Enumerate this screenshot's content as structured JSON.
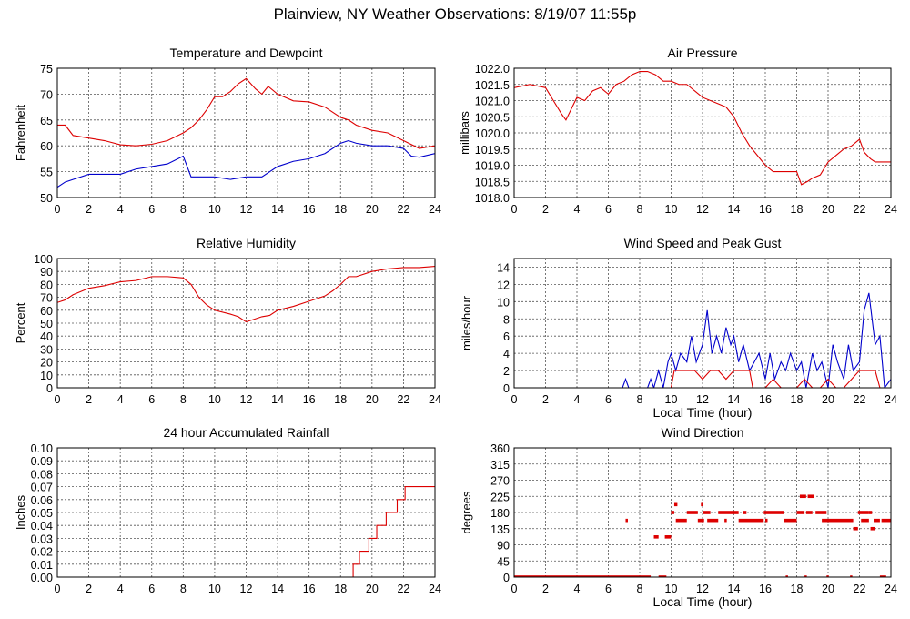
{
  "page": {
    "title": "Plainview, NY Weather Observations: 8/19/07 11:55p"
  },
  "colors": {
    "red": "#dd0000",
    "blue": "#0000cc",
    "grid": "#555555"
  },
  "chart_data": [
    {
      "id": "temp",
      "type": "line",
      "title": "Temperature and Dewpoint",
      "xlabel": "",
      "ylabel": "Fahrenheit",
      "xlim": [
        0,
        24
      ],
      "ylim": [
        50,
        75
      ],
      "yticks": [
        50,
        55,
        60,
        65,
        70,
        75
      ],
      "ytick_labels": [
        "50",
        "55",
        "60",
        "65",
        "70",
        "75"
      ],
      "xticks": [
        0,
        2,
        4,
        6,
        8,
        10,
        12,
        14,
        16,
        18,
        20,
        22,
        24
      ],
      "grid": true,
      "series": [
        {
          "color": "#dd0000",
          "x": [
            0,
            0.5,
            1,
            2,
            3,
            4,
            5,
            6,
            7,
            8,
            8.5,
            9,
            9.5,
            10,
            10.5,
            11,
            11.5,
            12,
            12.3,
            12.6,
            13,
            13.4,
            14,
            15,
            16,
            17,
            18,
            18.5,
            19,
            20,
            21,
            22,
            23,
            24
          ],
          "y": [
            64,
            64,
            62,
            61.5,
            61,
            60.2,
            60,
            60.3,
            61,
            62.5,
            63.5,
            65,
            67,
            69.5,
            69.5,
            70.5,
            72,
            73,
            72,
            71,
            70,
            71.5,
            70,
            68.7,
            68.5,
            67.5,
            65.5,
            65,
            64,
            63,
            62.5,
            61,
            59.5,
            60
          ]
        },
        {
          "color": "#0000cc",
          "x": [
            0,
            0.5,
            1,
            2,
            3,
            4,
            5,
            6,
            7,
            8,
            8.5,
            9,
            10,
            11,
            12,
            13,
            14,
            15,
            16,
            17,
            18,
            18.5,
            19,
            20,
            21,
            22,
            22.5,
            23,
            24
          ],
          "y": [
            52,
            53,
            53.5,
            54.5,
            54.5,
            54.5,
            55.5,
            56,
            56.5,
            58,
            54,
            54,
            54,
            53.5,
            54,
            54,
            56,
            57,
            57.5,
            58.5,
            60.5,
            61,
            60.5,
            60,
            60,
            59.5,
            58,
            57.8,
            58.5
          ]
        }
      ]
    },
    {
      "id": "pressure",
      "type": "line",
      "title": "Air Pressure",
      "xlabel": "",
      "ylabel": "millibars",
      "xlim": [
        0,
        24
      ],
      "ylim": [
        1018.0,
        1022.0
      ],
      "yticks": [
        1018.0,
        1018.5,
        1019.0,
        1019.5,
        1020.0,
        1020.5,
        1021.0,
        1021.5,
        1022.0
      ],
      "ytick_labels": [
        "1018.0",
        "1018.5",
        "1019.0",
        "1019.5",
        "1020.0",
        "1020.5",
        "1021.0",
        "1021.5",
        "1022.0"
      ],
      "xticks": [
        0,
        2,
        4,
        6,
        8,
        10,
        12,
        14,
        16,
        18,
        20,
        22,
        24
      ],
      "grid": true,
      "series": [
        {
          "color": "#dd0000",
          "x": [
            0,
            1,
            2,
            2.5,
            3,
            3.3,
            3.7,
            4,
            4.5,
            5,
            5.5,
            6,
            6.5,
            7,
            7.5,
            8,
            8.5,
            9,
            9.5,
            10,
            10.5,
            11,
            11.5,
            12,
            13,
            13.5,
            14,
            14.5,
            15,
            15.5,
            16,
            16.5,
            17,
            18,
            18.3,
            18.7,
            19,
            19.5,
            20,
            20.5,
            21,
            21.5,
            22,
            22.3,
            22.7,
            23,
            24
          ],
          "y": [
            1021.4,
            1021.5,
            1021.4,
            1021.0,
            1020.6,
            1020.4,
            1020.8,
            1021.1,
            1021.0,
            1021.3,
            1021.4,
            1021.2,
            1021.5,
            1021.6,
            1021.8,
            1021.9,
            1021.9,
            1021.8,
            1021.6,
            1021.6,
            1021.5,
            1021.5,
            1021.3,
            1021.1,
            1020.9,
            1020.8,
            1020.5,
            1020.0,
            1019.6,
            1019.3,
            1019.0,
            1018.8,
            1018.8,
            1018.8,
            1018.4,
            1018.5,
            1018.6,
            1018.7,
            1019.1,
            1019.3,
            1019.5,
            1019.6,
            1019.8,
            1019.4,
            1019.2,
            1019.1,
            1019.1
          ]
        }
      ]
    },
    {
      "id": "humidity",
      "type": "line",
      "title": "Relative Humidity",
      "xlabel": "",
      "ylabel": "Percent",
      "xlim": [
        0,
        24
      ],
      "ylim": [
        0,
        100
      ],
      "yticks": [
        0,
        10,
        20,
        30,
        40,
        50,
        60,
        70,
        80,
        90,
        100
      ],
      "ytick_labels": [
        "0",
        "10",
        "20",
        "30",
        "40",
        "50",
        "60",
        "70",
        "80",
        "90",
        "100"
      ],
      "xticks": [
        0,
        2,
        4,
        6,
        8,
        10,
        12,
        14,
        16,
        18,
        20,
        22,
        24
      ],
      "grid": true,
      "series": [
        {
          "color": "#dd0000",
          "x": [
            0,
            0.5,
            1,
            2,
            3,
            4,
            5,
            6,
            7,
            8,
            8.5,
            9,
            9.5,
            10,
            11,
            11.5,
            12,
            12.5,
            13,
            13.5,
            14,
            15,
            16,
            17,
            17.5,
            18,
            18.5,
            19,
            20,
            21,
            22,
            23,
            24
          ],
          "y": [
            66,
            68,
            72,
            77,
            79,
            82,
            83,
            86,
            86,
            85,
            80,
            70,
            64,
            60,
            57,
            55,
            51,
            53,
            55,
            56,
            60,
            63,
            67,
            71,
            75,
            80,
            86,
            86,
            90,
            92,
            93,
            93,
            94
          ]
        }
      ]
    },
    {
      "id": "wind",
      "type": "line",
      "title": "Wind Speed and Peak Gust",
      "xlabel": "Local Time (hour)",
      "ylabel": "miles/hour",
      "xlim": [
        0,
        24
      ],
      "ylim": [
        0,
        15
      ],
      "yticks": [
        0,
        2,
        4,
        6,
        8,
        10,
        12,
        14
      ],
      "ytick_labels": [
        "0",
        "2",
        "4",
        "6",
        "8",
        "10",
        "12",
        "14"
      ],
      "xticks": [
        0,
        2,
        4,
        6,
        8,
        10,
        12,
        14,
        16,
        18,
        20,
        22,
        24
      ],
      "grid": true,
      "series": [
        {
          "color": "#0000cc",
          "x": [
            0,
            6.9,
            7.1,
            7.3,
            8.5,
            8.7,
            8.9,
            9.2,
            9.5,
            9.8,
            10,
            10.3,
            10.6,
            11,
            11.3,
            11.6,
            12,
            12.3,
            12.6,
            12.9,
            13.2,
            13.5,
            13.8,
            14,
            14.3,
            14.6,
            15,
            15.3,
            15.6,
            16,
            16.3,
            16.6,
            17,
            17.3,
            17.6,
            18,
            18.3,
            18.6,
            19,
            19.3,
            19.6,
            20,
            20.3,
            20.6,
            21,
            21.3,
            21.6,
            22,
            22.3,
            22.6,
            23,
            23.3,
            23.6,
            24
          ],
          "y": [
            0,
            0,
            1,
            0,
            0,
            1,
            0,
            2,
            0,
            3,
            4,
            2,
            4,
            3,
            6,
            3,
            5,
            9,
            4,
            6,
            4,
            7,
            5,
            6,
            3,
            5,
            2,
            3,
            4,
            1,
            4,
            1,
            3,
            2,
            4,
            2,
            3,
            0,
            4,
            2,
            3,
            0,
            5,
            3,
            1,
            5,
            2,
            3,
            9,
            11,
            5,
            6,
            0,
            1
          ]
        },
        {
          "color": "#dd0000",
          "x": [
            0,
            10,
            10.2,
            11,
            11.5,
            12,
            12.5,
            13,
            13.5,
            14,
            14.5,
            15,
            15.2,
            16,
            16.5,
            17,
            18,
            18.5,
            19,
            19.5,
            20,
            20.5,
            21,
            21.5,
            22,
            22.5,
            23,
            23.3,
            24
          ],
          "y": [
            0,
            0,
            2,
            2,
            2,
            1,
            2,
            2,
            1,
            2,
            2,
            2,
            0,
            0,
            1,
            0,
            0,
            1,
            0,
            0,
            1,
            0,
            0,
            1,
            2,
            2,
            2,
            0,
            0
          ]
        }
      ]
    },
    {
      "id": "rain",
      "type": "line",
      "title": "24 hour Accumulated Rainfall",
      "xlabel": "",
      "ylabel": "Inches",
      "xlim": [
        0,
        24
      ],
      "ylim": [
        0,
        0.1
      ],
      "yticks": [
        0,
        0.01,
        0.02,
        0.03,
        0.04,
        0.05,
        0.06,
        0.07,
        0.08,
        0.09,
        0.1
      ],
      "ytick_labels": [
        "0.00",
        "0.01",
        "0.02",
        "0.03",
        "0.04",
        "0.05",
        "0.06",
        "0.07",
        "0.08",
        "0.09",
        "0.10"
      ],
      "xticks": [
        0,
        2,
        4,
        6,
        8,
        10,
        12,
        14,
        16,
        18,
        20,
        22,
        24
      ],
      "grid": true,
      "series": [
        {
          "color": "#dd0000",
          "step": true,
          "x": [
            0,
            18.8,
            19.0,
            19.2,
            19.5,
            19.8,
            20.0,
            20.3,
            20.6,
            20.9,
            21.2,
            21.6,
            21.9,
            22.1,
            24
          ],
          "y": [
            0,
            0.01,
            0.01,
            0.02,
            0.02,
            0.03,
            0.03,
            0.04,
            0.04,
            0.05,
            0.05,
            0.06,
            0.06,
            0.07,
            0.07
          ]
        }
      ]
    },
    {
      "id": "direction",
      "type": "scatter",
      "title": "Wind Direction",
      "xlabel": "Local Time (hour)",
      "ylabel": "degrees",
      "xlim": [
        0,
        24
      ],
      "ylim": [
        0,
        360
      ],
      "yticks": [
        0,
        45,
        90,
        135,
        180,
        225,
        270,
        315,
        360
      ],
      "ytick_labels": [
        "0",
        "45",
        "90",
        "135",
        "180",
        "225",
        "270",
        "315",
        "360"
      ],
      "xticks": [
        0,
        2,
        4,
        6,
        8,
        10,
        12,
        14,
        16,
        18,
        20,
        22,
        24
      ],
      "grid": true,
      "series": [
        {
          "color": "#dd0000",
          "segments": [
            {
              "x0": 0,
              "x1": 8.7,
              "y": 0
            },
            {
              "x0": 9.2,
              "x1": 9.7,
              "y": 0
            },
            {
              "x0": 7.1,
              "x1": 7.2,
              "y": 158
            },
            {
              "x0": 8.9,
              "x1": 9.2,
              "y": 112
            },
            {
              "x0": 9.6,
              "x1": 10.0,
              "y": 112
            },
            {
              "x0": 10.0,
              "x1": 10.2,
              "y": 180
            },
            {
              "x0": 10.2,
              "x1": 10.4,
              "y": 202
            },
            {
              "x0": 10.3,
              "x1": 11.0,
              "y": 158
            },
            {
              "x0": 11.0,
              "x1": 11.7,
              "y": 180
            },
            {
              "x0": 11.7,
              "x1": 12.1,
              "y": 158
            },
            {
              "x0": 11.9,
              "x1": 12.0,
              "y": 202
            },
            {
              "x0": 12.0,
              "x1": 12.5,
              "y": 180
            },
            {
              "x0": 12.3,
              "x1": 13.0,
              "y": 158
            },
            {
              "x0": 13.0,
              "x1": 14.3,
              "y": 180
            },
            {
              "x0": 13.4,
              "x1": 13.5,
              "y": 158
            },
            {
              "x0": 14.3,
              "x1": 15.9,
              "y": 158
            },
            {
              "x0": 14.6,
              "x1": 14.8,
              "y": 180
            },
            {
              "x0": 15.9,
              "x1": 17.2,
              "y": 180
            },
            {
              "x0": 16.0,
              "x1": 16.1,
              "y": 158
            },
            {
              "x0": 17.2,
              "x1": 18.0,
              "y": 158
            },
            {
              "x0": 17.3,
              "x1": 17.4,
              "y": 0
            },
            {
              "x0": 18.0,
              "x1": 18.5,
              "y": 180
            },
            {
              "x0": 18.2,
              "x1": 18.6,
              "y": 225
            },
            {
              "x0": 18.5,
              "x1": 18.6,
              "y": 0
            },
            {
              "x0": 18.6,
              "x1": 19.0,
              "y": 180
            },
            {
              "x0": 18.7,
              "x1": 19.1,
              "y": 225
            },
            {
              "x0": 19.2,
              "x1": 19.9,
              "y": 180
            },
            {
              "x0": 19.6,
              "x1": 21.6,
              "y": 158
            },
            {
              "x0": 19.9,
              "x1": 20.0,
              "y": 0
            },
            {
              "x0": 21.4,
              "x1": 21.5,
              "y": 0
            },
            {
              "x0": 21.6,
              "x1": 21.9,
              "y": 135
            },
            {
              "x0": 21.9,
              "x1": 22.6,
              "y": 180
            },
            {
              "x0": 22.1,
              "x1": 22.6,
              "y": 158
            },
            {
              "x0": 22.6,
              "x1": 22.8,
              "y": 180
            },
            {
              "x0": 22.7,
              "x1": 23.0,
              "y": 135
            },
            {
              "x0": 22.9,
              "x1": 23.3,
              "y": 158
            },
            {
              "x0": 23.3,
              "x1": 23.7,
              "y": 0
            },
            {
              "x0": 23.4,
              "x1": 24.0,
              "y": 158
            }
          ]
        }
      ]
    }
  ]
}
